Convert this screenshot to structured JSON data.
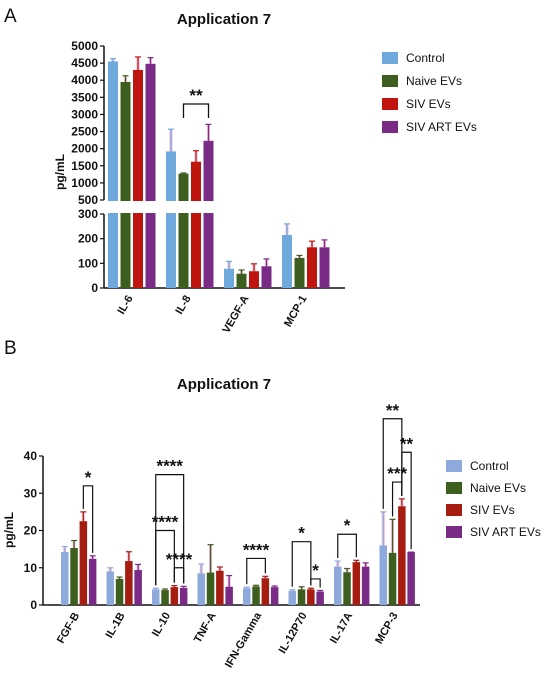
{
  "colors": {
    "control": "#6fa8dc",
    "control_b": "#8ea9db",
    "naive": "#3d5e1f",
    "siv": "#c0150f",
    "siv_b": "#a61c10",
    "sivart": "#7a2b86",
    "axis": "#111111",
    "error_halo": "#f2b8d6"
  },
  "chart_data": [
    {
      "panel_label": "A",
      "type": "bar",
      "title": "Application 7",
      "ylabel": "pg/mL",
      "xlabel": "",
      "categories": [
        "IL-6",
        "IL-8",
        "VEGF-A",
        "MCP-1"
      ],
      "series": [
        {
          "name": "Control",
          "color_key": "control",
          "values": [
            4550,
            1920,
            78,
            215
          ],
          "errors": [
            80,
            650,
            30,
            45
          ]
        },
        {
          "name": "Naive EVs",
          "color_key": "naive",
          "values": [
            3950,
            1270,
            58,
            122
          ],
          "errors": [
            180,
            20,
            15,
            10
          ]
        },
        {
          "name": "SIV EVs",
          "color_key": "siv",
          "values": [
            4300,
            1620,
            68,
            165
          ],
          "errors": [
            380,
            320,
            30,
            25
          ]
        },
        {
          "name": "SIV ART EVs",
          "color_key": "sivart",
          "values": [
            4480,
            2230,
            88,
            165
          ],
          "errors": [
            180,
            480,
            30,
            30
          ]
        }
      ],
      "axis_break": {
        "lower_range": [
          0,
          300
        ],
        "upper_range": [
          500,
          5000
        ]
      },
      "lower_ticks": [
        "0",
        "100",
        "200",
        "300"
      ],
      "upper_ticks": [
        "500",
        "1000",
        "1500",
        "2000",
        "2500",
        "3000",
        "3500",
        "4000",
        "4500",
        "5000"
      ],
      "ylim": [
        0,
        5000
      ],
      "annotations": [
        {
          "text": "**",
          "category": "IL-8",
          "from_series": 1,
          "to_series": 3
        }
      ],
      "legend_position": "right"
    },
    {
      "panel_label": "B",
      "type": "bar",
      "title": "Application 7",
      "ylabel": "pg/mL",
      "xlabel": "",
      "categories": [
        "FGF-B",
        "IL-1B",
        "IL-10",
        "TNF-A",
        "IFN-Gamma",
        "IL-12P70",
        "IL-17A",
        "MCP-3"
      ],
      "series": [
        {
          "name": "Control",
          "color_key": "control_b",
          "values": [
            14.2,
            9.0,
            4.2,
            8.5,
            4.5,
            3.8,
            10.3,
            16.0
          ],
          "errors": [
            1.5,
            1.0,
            0.3,
            2.5,
            0.3,
            0.3,
            1.5,
            9.0
          ]
        },
        {
          "name": "Naive EVs",
          "color_key": "naive",
          "values": [
            15.3,
            7.0,
            4.0,
            8.7,
            5.0,
            4.2,
            8.8,
            14.0
          ],
          "errors": [
            2.0,
            0.5,
            0.3,
            7.5,
            0.3,
            0.7,
            1.0,
            9.0
          ]
        },
        {
          "name": "SIV EVs",
          "color_key": "siv_b",
          "values": [
            22.5,
            11.8,
            4.8,
            9.2,
            7.2,
            4.2,
            11.5,
            26.5
          ],
          "errors": [
            2.5,
            2.5,
            0.4,
            1.0,
            0.5,
            0.3,
            0.5,
            2.0
          ]
        },
        {
          "name": "SIV ART EVs",
          "color_key": "sivart",
          "values": [
            12.4,
            9.4,
            4.6,
            4.9,
            4.8,
            3.6,
            10.3,
            14.2
          ],
          "errors": [
            0.8,
            1.5,
            0.4,
            3.0,
            0.3,
            0.3,
            1.0,
            0.0
          ]
        }
      ],
      "ylim": [
        0,
        40
      ],
      "ticks": [
        "0",
        "10",
        "20",
        "30",
        "40"
      ],
      "annotations": [
        {
          "text": "*",
          "category": "FGF-B",
          "from_series": 2,
          "to_series": 3,
          "level": 32
        },
        {
          "text": "****",
          "category": "IL-10",
          "from_series": 0,
          "to_series": 3,
          "level": 35
        },
        {
          "text": "****",
          "category": "IL-10",
          "from_series": 0,
          "to_series": 2,
          "level": 20
        },
        {
          "text": "****",
          "category": "IL-10",
          "from_series": 2,
          "to_series": 3,
          "level": 10
        },
        {
          "text": "****",
          "category": "IFN-Gamma",
          "from_series": 0,
          "to_series": 2,
          "level": 12.5
        },
        {
          "text": "*",
          "category": "IL-12P70",
          "from_series": 0,
          "to_series": 2,
          "level": 17
        },
        {
          "text": "*",
          "category": "IL-12P70",
          "from_series": 2,
          "to_series": 3,
          "level": 7
        },
        {
          "text": "*",
          "category": "IL-17A",
          "from_series": 0,
          "to_series": 2,
          "level": 19
        },
        {
          "text": "**",
          "category": "MCP-3",
          "from_series": 0,
          "to_series": 2,
          "level": 50
        },
        {
          "text": "**",
          "category": "MCP-3",
          "from_series": 2,
          "to_series": 3,
          "level": 41
        },
        {
          "text": "***",
          "category": "MCP-3",
          "from_series": 1,
          "to_series": 2,
          "level": 33
        }
      ],
      "legend_position": "right"
    }
  ]
}
